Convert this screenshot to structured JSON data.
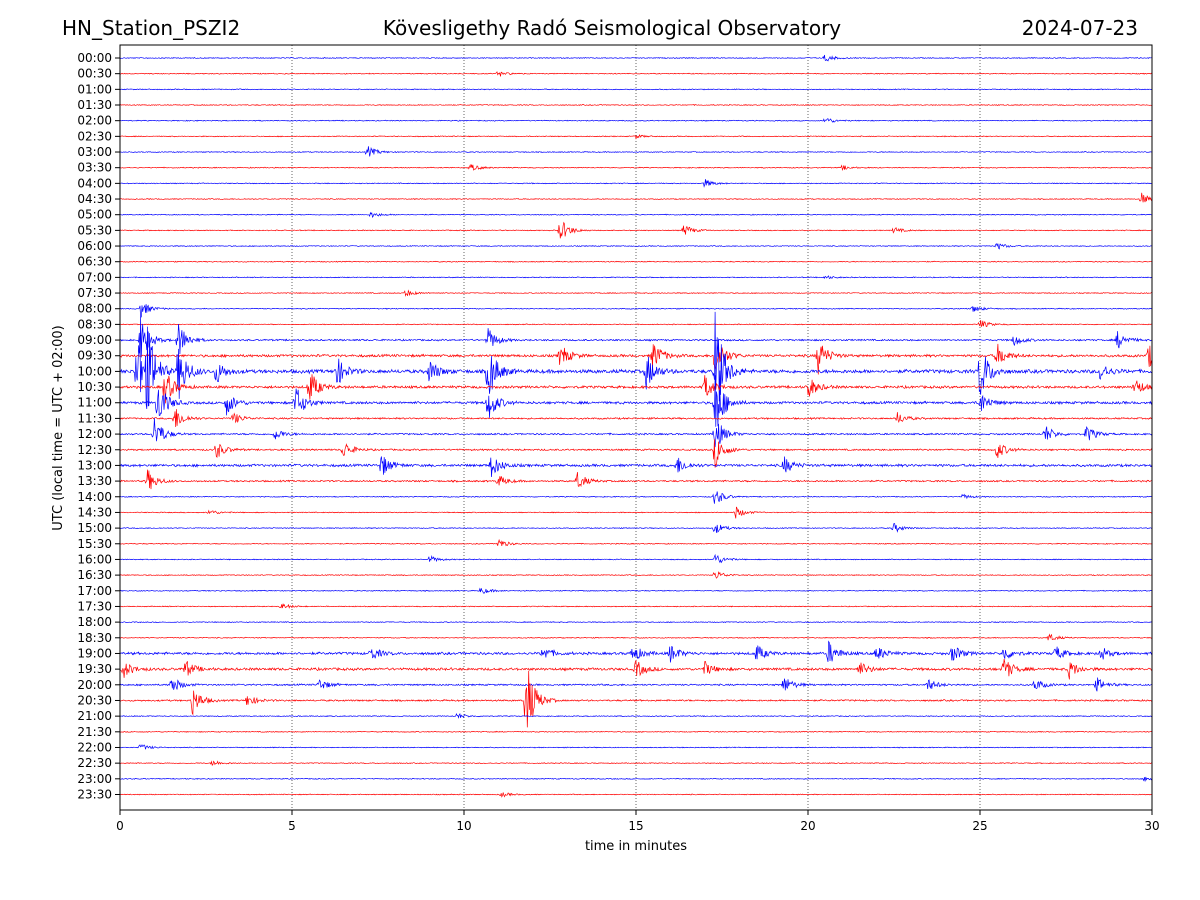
{
  "header": {
    "station": "HN_Station_PSZI2",
    "observatory": "Kövesligethy Radó Seismological Observatory",
    "date": "2024-07-23"
  },
  "chart_data": {
    "type": "line",
    "title": "Kövesligethy Radó Seismological Observatory",
    "xlabel": "time in minutes",
    "ylabel": "UTC (local time = UTC + 02:00)",
    "xlim": [
      0,
      30
    ],
    "x_ticks": [
      0,
      5,
      10,
      15,
      20,
      25,
      30
    ],
    "grid": "vertical dotted lines at 5-minute intervals",
    "colors": {
      "even_rows": "#0000ff",
      "odd_rows": "#ff0000"
    },
    "traces": [
      {
        "label": "00:00",
        "activity": "quiet",
        "events": [
          [
            20.5,
            0.6
          ]
        ]
      },
      {
        "label": "00:30",
        "activity": "quiet",
        "events": [
          [
            11.0,
            0.5
          ]
        ]
      },
      {
        "label": "01:00",
        "activity": "quiet",
        "events": []
      },
      {
        "label": "01:30",
        "activity": "quiet",
        "events": []
      },
      {
        "label": "02:00",
        "activity": "quiet",
        "events": [
          [
            20.5,
            0.6
          ]
        ]
      },
      {
        "label": "02:30",
        "activity": "quiet",
        "events": [
          [
            15.0,
            0.3
          ]
        ]
      },
      {
        "label": "03:00",
        "activity": "quiet",
        "events": [
          [
            7.2,
            1.0
          ]
        ]
      },
      {
        "label": "03:30",
        "activity": "quiet",
        "events": [
          [
            10.2,
            0.6
          ],
          [
            21.0,
            0.4
          ]
        ]
      },
      {
        "label": "04:00",
        "activity": "quiet",
        "events": [
          [
            17.0,
            0.7
          ]
        ]
      },
      {
        "label": "04:30",
        "activity": "quiet",
        "events": [
          [
            29.7,
            1.0
          ]
        ]
      },
      {
        "label": "05:00",
        "activity": "quiet",
        "events": [
          [
            7.3,
            0.5
          ]
        ]
      },
      {
        "label": "05:30",
        "activity": "quiet",
        "events": [
          [
            12.8,
            2.0
          ],
          [
            16.4,
            1.0
          ],
          [
            22.5,
            0.5
          ]
        ]
      },
      {
        "label": "06:00",
        "activity": "quiet",
        "events": [
          [
            25.5,
            0.6
          ]
        ]
      },
      {
        "label": "06:30",
        "activity": "quiet",
        "events": []
      },
      {
        "label": "07:00",
        "activity": "quiet",
        "events": [
          [
            20.5,
            0.3
          ]
        ]
      },
      {
        "label": "07:30",
        "activity": "quiet",
        "events": [
          [
            8.3,
            0.6
          ]
        ]
      },
      {
        "label": "08:00",
        "activity": "quiet",
        "events": [
          [
            0.6,
            1.5
          ],
          [
            24.8,
            0.6
          ]
        ]
      },
      {
        "label": "08:30",
        "activity": "quiet",
        "events": [
          [
            25.0,
            0.8
          ]
        ]
      },
      {
        "label": "09:00",
        "activity": "moderate",
        "events": [
          [
            0.6,
            4.0
          ],
          [
            1.7,
            3.0
          ],
          [
            10.7,
            2.0
          ],
          [
            26.0,
            1.0
          ],
          [
            29.0,
            1.5
          ]
        ]
      },
      {
        "label": "09:30",
        "activity": "high",
        "events": [
          [
            12.8,
            2.0
          ],
          [
            15.5,
            2.5
          ],
          [
            17.3,
            4.0
          ],
          [
            20.3,
            3.0
          ],
          [
            25.5,
            2.0
          ],
          [
            29.9,
            2.0
          ]
        ]
      },
      {
        "label": "10:00",
        "activity": "very high",
        "events": [
          [
            0.5,
            8.0
          ],
          [
            0.8,
            6.0
          ],
          [
            1.7,
            5.0
          ],
          [
            2.8,
            2.0
          ],
          [
            6.3,
            2.5
          ],
          [
            9.0,
            2.0
          ],
          [
            10.7,
            5.0
          ],
          [
            15.3,
            3.0
          ],
          [
            17.3,
            10.0
          ],
          [
            25.0,
            5.0
          ],
          [
            28.5,
            1.5
          ]
        ]
      },
      {
        "label": "10:30",
        "activity": "high",
        "events": [
          [
            1.3,
            3.0
          ],
          [
            5.5,
            3.0
          ],
          [
            17.0,
            2.0
          ],
          [
            20.0,
            2.0
          ],
          [
            29.5,
            1.5
          ]
        ]
      },
      {
        "label": "11:00",
        "activity": "high",
        "events": [
          [
            1.1,
            4.0
          ],
          [
            3.1,
            2.0
          ],
          [
            5.1,
            3.0
          ],
          [
            10.7,
            3.0
          ],
          [
            17.3,
            6.0
          ],
          [
            25.0,
            2.0
          ]
        ]
      },
      {
        "label": "11:30",
        "activity": "moderate",
        "events": [
          [
            1.6,
            2.0
          ],
          [
            3.3,
            1.0
          ],
          [
            22.6,
            1.0
          ]
        ]
      },
      {
        "label": "12:00",
        "activity": "moderate",
        "events": [
          [
            1.0,
            3.0
          ],
          [
            4.5,
            1.0
          ],
          [
            17.3,
            3.0
          ],
          [
            26.9,
            1.5
          ],
          [
            28.1,
            1.5
          ]
        ]
      },
      {
        "label": "12:30",
        "activity": "moderate",
        "events": [
          [
            2.8,
            1.5
          ],
          [
            6.5,
            1.5
          ],
          [
            17.3,
            3.0
          ],
          [
            25.5,
            1.5
          ]
        ]
      },
      {
        "label": "13:00",
        "activity": "high",
        "events": [
          [
            7.6,
            2.0
          ],
          [
            10.8,
            2.0
          ],
          [
            16.2,
            1.5
          ],
          [
            19.3,
            1.5
          ]
        ]
      },
      {
        "label": "13:30",
        "activity": "moderate",
        "events": [
          [
            0.8,
            2.0
          ],
          [
            11.0,
            1.0
          ],
          [
            13.3,
            1.5
          ]
        ]
      },
      {
        "label": "14:00",
        "activity": "quiet",
        "events": [
          [
            17.3,
            1.5
          ],
          [
            24.5,
            0.4
          ]
        ]
      },
      {
        "label": "14:30",
        "activity": "quiet",
        "events": [
          [
            2.6,
            0.5
          ],
          [
            17.9,
            1.0
          ]
        ]
      },
      {
        "label": "15:00",
        "activity": "quiet",
        "events": [
          [
            17.3,
            1.0
          ],
          [
            22.5,
            0.8
          ]
        ]
      },
      {
        "label": "15:30",
        "activity": "quiet",
        "events": [
          [
            11.0,
            0.8
          ]
        ]
      },
      {
        "label": "16:00",
        "activity": "quiet",
        "events": [
          [
            9.0,
            0.6
          ],
          [
            17.3,
            1.0
          ]
        ]
      },
      {
        "label": "16:30",
        "activity": "quiet",
        "events": [
          [
            17.3,
            0.8
          ]
        ]
      },
      {
        "label": "17:00",
        "activity": "quiet",
        "events": [
          [
            10.5,
            0.6
          ]
        ]
      },
      {
        "label": "17:30",
        "activity": "quiet",
        "events": [
          [
            4.7,
            0.5
          ]
        ]
      },
      {
        "label": "18:00",
        "activity": "quiet",
        "events": []
      },
      {
        "label": "18:30",
        "activity": "quiet",
        "events": [
          [
            27.0,
            0.7
          ]
        ]
      },
      {
        "label": "19:00",
        "activity": "high",
        "events": [
          [
            7.3,
            1.2
          ],
          [
            12.3,
            1.2
          ],
          [
            14.9,
            1.5
          ],
          [
            16.0,
            1.5
          ],
          [
            18.5,
            1.5
          ],
          [
            20.6,
            2.0
          ],
          [
            22.0,
            1.2
          ],
          [
            24.2,
            1.5
          ],
          [
            25.7,
            1.2
          ],
          [
            27.2,
            1.2
          ],
          [
            28.5,
            1.2
          ]
        ]
      },
      {
        "label": "19:30",
        "activity": "high",
        "events": [
          [
            0.1,
            1.5
          ],
          [
            1.9,
            1.5
          ],
          [
            15.0,
            1.5
          ],
          [
            17.0,
            1.2
          ],
          [
            21.5,
            1.2
          ],
          [
            25.7,
            2.0
          ],
          [
            27.6,
            1.5
          ]
        ]
      },
      {
        "label": "20:00",
        "activity": "moderate",
        "events": [
          [
            1.5,
            1.5
          ],
          [
            5.8,
            1.0
          ],
          [
            19.3,
            1.5
          ],
          [
            23.5,
            1.0
          ],
          [
            26.6,
            1.0
          ],
          [
            28.4,
            1.2
          ]
        ]
      },
      {
        "label": "20:30",
        "activity": "moderate",
        "events": [
          [
            2.1,
            2.5
          ],
          [
            3.7,
            1.0
          ],
          [
            11.8,
            7.0
          ]
        ]
      },
      {
        "label": "21:00",
        "activity": "quiet",
        "events": [
          [
            9.8,
            0.5
          ]
        ]
      },
      {
        "label": "21:30",
        "activity": "quiet",
        "events": []
      },
      {
        "label": "22:00",
        "activity": "quiet",
        "events": [
          [
            0.6,
            0.6
          ]
        ]
      },
      {
        "label": "22:30",
        "activity": "quiet",
        "events": [
          [
            2.7,
            0.5
          ]
        ]
      },
      {
        "label": "23:00",
        "activity": "quiet",
        "events": [
          [
            29.8,
            0.4
          ]
        ]
      },
      {
        "label": "23:30",
        "activity": "quiet",
        "events": [
          [
            11.1,
            0.4
          ]
        ]
      }
    ]
  }
}
